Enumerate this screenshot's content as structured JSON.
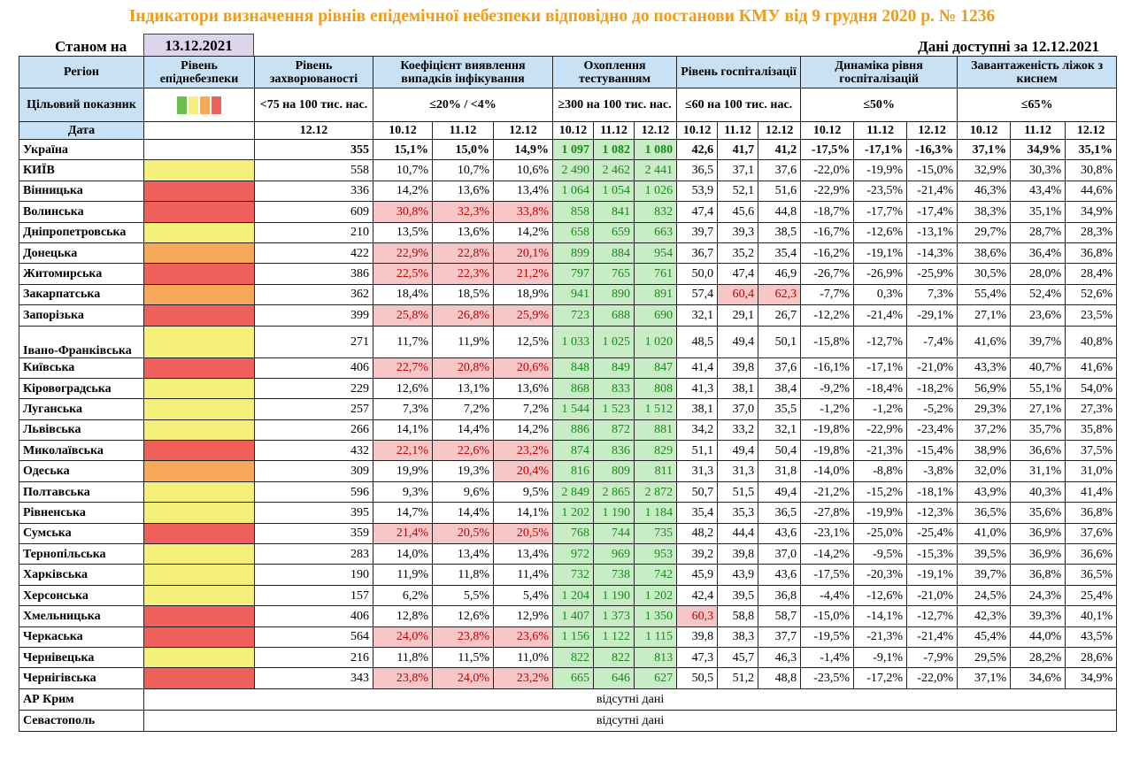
{
  "title": "Індикатори визначення рівнів епідемічної небезпеки відповідно до постанови КМУ від 9 грудня 2020 р. № 1236",
  "as_of_label": "Станом на",
  "as_of_date": "13.12.2021",
  "data_available": "Дані доступні за  12.12.2021",
  "headers": {
    "region": "Регіон",
    "danger_level": "Рівень епіднебезпеки",
    "incidence": "Рівень захворюваності",
    "detection": "Коефіцієнт виявлення випадків інфікування",
    "testing": "Охоплення тестуванням",
    "hosp": "Рівень госпіталізації",
    "hosp_dyn": "Динаміка рівня госпіталізацій",
    "oxygen": "Завантаженість ліжок з киснем"
  },
  "targets": {
    "label": "Цільовий показник",
    "incidence": "<75 на 100 тис. нас.",
    "detection": "≤20% / <4%",
    "testing": "≥300 на 100 тис. нас.",
    "hosp": "≤60 на 100 тис. нас.",
    "hosp_dyn": "≤50%",
    "oxygen": "≤65%",
    "swatch_colors": [
      "#6cbf4a",
      "#f4f07a",
      "#f6a858",
      "#f0605a"
    ]
  },
  "dates": {
    "label": "Дата",
    "incidence": "12.12",
    "triple": [
      "10.12",
      "11.12",
      "12.12"
    ]
  },
  "level_colors": {
    "red": "#f0605a",
    "yellow": "#f4f07a",
    "orange": "#f6a858"
  },
  "rows": [
    {
      "region": "Україна",
      "level": "",
      "inc": "355",
      "det": [
        "15,1%",
        "15,0%",
        "14,9%"
      ],
      "test": [
        "1 097",
        "1 082",
        "1 080"
      ],
      "hosp": [
        "42,6",
        "41,7",
        "41,2"
      ],
      "dyn": [
        "-17,5%",
        "-17,1%",
        "-16,3%"
      ],
      "oxy": [
        "37,1%",
        "34,9%",
        "35,1%"
      ],
      "bold": true,
      "pink_det": [
        false,
        false,
        false
      ],
      "pink_hosp": [
        false,
        false,
        false
      ]
    },
    {
      "region": "КИЇВ",
      "level": "yellow",
      "inc": "558",
      "det": [
        "10,7%",
        "10,7%",
        "10,6%"
      ],
      "test": [
        "2 490",
        "2 462",
        "2 441"
      ],
      "hosp": [
        "36,5",
        "37,1",
        "37,6"
      ],
      "dyn": [
        "-22,0%",
        "-19,9%",
        "-15,0%"
      ],
      "oxy": [
        "32,9%",
        "30,3%",
        "30,8%"
      ],
      "pink_det": [
        false,
        false,
        false
      ],
      "pink_hosp": [
        false,
        false,
        false
      ]
    },
    {
      "region": "Вінницька",
      "level": "red",
      "inc": "336",
      "det": [
        "14,2%",
        "13,6%",
        "13,4%"
      ],
      "test": [
        "1 064",
        "1 054",
        "1 026"
      ],
      "hosp": [
        "53,9",
        "52,1",
        "51,6"
      ],
      "dyn": [
        "-22,9%",
        "-23,5%",
        "-21,4%"
      ],
      "oxy": [
        "46,3%",
        "43,4%",
        "44,6%"
      ],
      "pink_det": [
        false,
        false,
        false
      ],
      "pink_hosp": [
        false,
        false,
        false
      ]
    },
    {
      "region": "Волинська",
      "level": "red",
      "inc": "609",
      "det": [
        "30,8%",
        "32,3%",
        "33,8%"
      ],
      "test": [
        "858",
        "841",
        "832"
      ],
      "hosp": [
        "47,4",
        "45,6",
        "44,8"
      ],
      "dyn": [
        "-18,7%",
        "-17,7%",
        "-17,4%"
      ],
      "oxy": [
        "38,3%",
        "35,1%",
        "34,9%"
      ],
      "pink_det": [
        true,
        true,
        true
      ],
      "pink_hosp": [
        false,
        false,
        false
      ]
    },
    {
      "region": "Дніпропетровська",
      "level": "yellow",
      "inc": "210",
      "det": [
        "13,5%",
        "13,6%",
        "14,2%"
      ],
      "test": [
        "658",
        "659",
        "663"
      ],
      "hosp": [
        "39,7",
        "39,3",
        "38,5"
      ],
      "dyn": [
        "-16,7%",
        "-12,6%",
        "-13,1%"
      ],
      "oxy": [
        "29,7%",
        "28,7%",
        "28,3%"
      ],
      "pink_det": [
        false,
        false,
        false
      ],
      "pink_hosp": [
        false,
        false,
        false
      ]
    },
    {
      "region": "Донецька",
      "level": "orange",
      "inc": "422",
      "det": [
        "22,9%",
        "22,8%",
        "20,1%"
      ],
      "test": [
        "899",
        "884",
        "954"
      ],
      "hosp": [
        "36,7",
        "35,2",
        "35,4"
      ],
      "dyn": [
        "-16,2%",
        "-19,1%",
        "-14,3%"
      ],
      "oxy": [
        "38,6%",
        "36,4%",
        "36,8%"
      ],
      "pink_det": [
        true,
        true,
        true
      ],
      "pink_hosp": [
        false,
        false,
        false
      ]
    },
    {
      "region": "Житомирська",
      "level": "red",
      "inc": "386",
      "det": [
        "22,5%",
        "22,3%",
        "21,2%"
      ],
      "test": [
        "797",
        "765",
        "761"
      ],
      "hosp": [
        "50,0",
        "47,4",
        "46,9"
      ],
      "dyn": [
        "-26,7%",
        "-26,9%",
        "-25,9%"
      ],
      "oxy": [
        "30,5%",
        "28,0%",
        "28,4%"
      ],
      "pink_det": [
        true,
        true,
        true
      ],
      "pink_hosp": [
        false,
        false,
        false
      ]
    },
    {
      "region": "Закарпатська",
      "level": "orange",
      "inc": "362",
      "det": [
        "18,4%",
        "18,5%",
        "18,9%"
      ],
      "test": [
        "941",
        "890",
        "891"
      ],
      "hosp": [
        "57,4",
        "60,4",
        "62,3"
      ],
      "dyn": [
        "-7,7%",
        "0,3%",
        "7,3%"
      ],
      "oxy": [
        "55,4%",
        "52,4%",
        "52,6%"
      ],
      "pink_det": [
        false,
        false,
        false
      ],
      "pink_hosp": [
        false,
        true,
        true
      ]
    },
    {
      "region": "Запорізька",
      "level": "red",
      "inc": "399",
      "det": [
        "25,8%",
        "26,8%",
        "25,9%"
      ],
      "test": [
        "723",
        "688",
        "690"
      ],
      "hosp": [
        "32,1",
        "29,1",
        "26,7"
      ],
      "dyn": [
        "-12,2%",
        "-21,4%",
        "-29,1%"
      ],
      "oxy": [
        "27,1%",
        "23,6%",
        "23,5%"
      ],
      "pink_det": [
        true,
        true,
        true
      ],
      "pink_hosp": [
        false,
        false,
        false
      ]
    },
    {
      "region": "Івано-Франківська",
      "level": "yellow",
      "inc": "271",
      "det": [
        "11,7%",
        "11,9%",
        "12,5%"
      ],
      "test": [
        "1 033",
        "1 025",
        "1 020"
      ],
      "hosp": [
        "48,5",
        "49,4",
        "50,1"
      ],
      "dyn": [
        "-15,8%",
        "-12,7%",
        "-7,4%"
      ],
      "oxy": [
        "41,6%",
        "39,7%",
        "40,8%"
      ],
      "pink_det": [
        false,
        false,
        false
      ],
      "pink_hosp": [
        false,
        false,
        false
      ],
      "tall": true
    },
    {
      "region": "Київська",
      "level": "red",
      "inc": "406",
      "det": [
        "22,7%",
        "20,8%",
        "20,6%"
      ],
      "test": [
        "848",
        "849",
        "847"
      ],
      "hosp": [
        "41,4",
        "39,8",
        "37,6"
      ],
      "dyn": [
        "-16,1%",
        "-17,1%",
        "-21,0%"
      ],
      "oxy": [
        "43,3%",
        "40,7%",
        "41,6%"
      ],
      "pink_det": [
        true,
        true,
        true
      ],
      "pink_hosp": [
        false,
        false,
        false
      ]
    },
    {
      "region": "Кіровоградська",
      "level": "yellow",
      "inc": "229",
      "det": [
        "12,6%",
        "13,1%",
        "13,6%"
      ],
      "test": [
        "868",
        "833",
        "808"
      ],
      "hosp": [
        "41,3",
        "38,1",
        "38,4"
      ],
      "dyn": [
        "-9,2%",
        "-18,4%",
        "-18,2%"
      ],
      "oxy": [
        "56,9%",
        "55,1%",
        "54,0%"
      ],
      "pink_det": [
        false,
        false,
        false
      ],
      "pink_hosp": [
        false,
        false,
        false
      ]
    },
    {
      "region": "Луганська",
      "level": "yellow",
      "inc": "257",
      "det": [
        "7,3%",
        "7,2%",
        "7,2%"
      ],
      "test": [
        "1 544",
        "1 523",
        "1 512"
      ],
      "hosp": [
        "38,1",
        "37,0",
        "35,5"
      ],
      "dyn": [
        "-1,2%",
        "-1,2%",
        "-5,2%"
      ],
      "oxy": [
        "29,3%",
        "27,1%",
        "27,3%"
      ],
      "pink_det": [
        false,
        false,
        false
      ],
      "pink_hosp": [
        false,
        false,
        false
      ]
    },
    {
      "region": "Львівська",
      "level": "yellow",
      "inc": "266",
      "det": [
        "14,1%",
        "14,4%",
        "14,2%"
      ],
      "test": [
        "886",
        "872",
        "881"
      ],
      "hosp": [
        "34,2",
        "33,2",
        "32,1"
      ],
      "dyn": [
        "-19,8%",
        "-22,9%",
        "-23,4%"
      ],
      "oxy": [
        "37,2%",
        "35,7%",
        "35,8%"
      ],
      "pink_det": [
        false,
        false,
        false
      ],
      "pink_hosp": [
        false,
        false,
        false
      ]
    },
    {
      "region": "Миколаївська",
      "level": "red",
      "inc": "432",
      "det": [
        "22,1%",
        "22,6%",
        "23,2%"
      ],
      "test": [
        "874",
        "836",
        "829"
      ],
      "hosp": [
        "51,1",
        "49,4",
        "50,4"
      ],
      "dyn": [
        "-19,8%",
        "-21,3%",
        "-15,4%"
      ],
      "oxy": [
        "38,9%",
        "36,6%",
        "37,5%"
      ],
      "pink_det": [
        true,
        true,
        true
      ],
      "pink_hosp": [
        false,
        false,
        false
      ]
    },
    {
      "region": "Одеська",
      "level": "orange",
      "inc": "309",
      "det": [
        "19,9%",
        "19,3%",
        "20,4%"
      ],
      "test": [
        "816",
        "809",
        "811"
      ],
      "hosp": [
        "31,3",
        "31,3",
        "31,8"
      ],
      "dyn": [
        "-14,0%",
        "-8,8%",
        "-3,8%"
      ],
      "oxy": [
        "32,0%",
        "31,1%",
        "31,0%"
      ],
      "pink_det": [
        false,
        false,
        true
      ],
      "pink_hosp": [
        false,
        false,
        false
      ]
    },
    {
      "region": "Полтавська",
      "level": "yellow",
      "inc": "596",
      "det": [
        "9,3%",
        "9,6%",
        "9,5%"
      ],
      "test": [
        "2 849",
        "2 865",
        "2 872"
      ],
      "hosp": [
        "50,7",
        "51,5",
        "49,4"
      ],
      "dyn": [
        "-21,2%",
        "-15,2%",
        "-18,1%"
      ],
      "oxy": [
        "43,9%",
        "40,3%",
        "41,4%"
      ],
      "pink_det": [
        false,
        false,
        false
      ],
      "pink_hosp": [
        false,
        false,
        false
      ]
    },
    {
      "region": "Рівненська",
      "level": "yellow",
      "inc": "395",
      "det": [
        "14,7%",
        "14,4%",
        "14,1%"
      ],
      "test": [
        "1 202",
        "1 190",
        "1 184"
      ],
      "hosp": [
        "35,4",
        "35,3",
        "36,5"
      ],
      "dyn": [
        "-27,8%",
        "-19,9%",
        "-12,3%"
      ],
      "oxy": [
        "36,5%",
        "35,6%",
        "36,8%"
      ],
      "pink_det": [
        false,
        false,
        false
      ],
      "pink_hosp": [
        false,
        false,
        false
      ]
    },
    {
      "region": "Сумська",
      "level": "red",
      "inc": "359",
      "det": [
        "21,4%",
        "20,5%",
        "20,5%"
      ],
      "test": [
        "768",
        "744",
        "735"
      ],
      "hosp": [
        "48,2",
        "44,4",
        "43,6"
      ],
      "dyn": [
        "-23,1%",
        "-25,0%",
        "-25,4%"
      ],
      "oxy": [
        "41,0%",
        "36,9%",
        "37,6%"
      ],
      "pink_det": [
        true,
        true,
        true
      ],
      "pink_hosp": [
        false,
        false,
        false
      ]
    },
    {
      "region": "Тернопільська",
      "level": "yellow",
      "inc": "283",
      "det": [
        "14,0%",
        "13,4%",
        "13,4%"
      ],
      "test": [
        "972",
        "969",
        "953"
      ],
      "hosp": [
        "39,2",
        "39,8",
        "37,0"
      ],
      "dyn": [
        "-14,2%",
        "-9,5%",
        "-15,3%"
      ],
      "oxy": [
        "39,5%",
        "36,9%",
        "36,6%"
      ],
      "pink_det": [
        false,
        false,
        false
      ],
      "pink_hosp": [
        false,
        false,
        false
      ]
    },
    {
      "region": "Харківська",
      "level": "yellow",
      "inc": "190",
      "det": [
        "11,9%",
        "11,8%",
        "11,4%"
      ],
      "test": [
        "732",
        "738",
        "742"
      ],
      "hosp": [
        "45,9",
        "43,9",
        "43,6"
      ],
      "dyn": [
        "-17,5%",
        "-20,3%",
        "-19,1%"
      ],
      "oxy": [
        "39,7%",
        "36,8%",
        "36,5%"
      ],
      "pink_det": [
        false,
        false,
        false
      ],
      "pink_hosp": [
        false,
        false,
        false
      ]
    },
    {
      "region": "Херсонська",
      "level": "yellow",
      "inc": "157",
      "det": [
        "6,2%",
        "5,5%",
        "5,4%"
      ],
      "test": [
        "1 204",
        "1 190",
        "1 202"
      ],
      "hosp": [
        "42,4",
        "39,5",
        "36,8"
      ],
      "dyn": [
        "-4,4%",
        "-12,6%",
        "-21,0%"
      ],
      "oxy": [
        "24,5%",
        "24,3%",
        "25,4%"
      ],
      "pink_det": [
        false,
        false,
        false
      ],
      "pink_hosp": [
        false,
        false,
        false
      ]
    },
    {
      "region": "Хмельницька",
      "level": "red",
      "inc": "406",
      "det": [
        "12,8%",
        "12,6%",
        "12,9%"
      ],
      "test": [
        "1 407",
        "1 373",
        "1 350"
      ],
      "hosp": [
        "60,3",
        "58,8",
        "58,7"
      ],
      "dyn": [
        "-15,0%",
        "-14,1%",
        "-12,7%"
      ],
      "oxy": [
        "42,3%",
        "39,3%",
        "40,1%"
      ],
      "pink_det": [
        false,
        false,
        false
      ],
      "pink_hosp": [
        true,
        false,
        false
      ]
    },
    {
      "region": "Черкаська",
      "level": "red",
      "inc": "564",
      "det": [
        "24,0%",
        "23,8%",
        "23,6%"
      ],
      "test": [
        "1 156",
        "1 122",
        "1 115"
      ],
      "hosp": [
        "39,8",
        "38,3",
        "37,7"
      ],
      "dyn": [
        "-19,5%",
        "-21,3%",
        "-21,4%"
      ],
      "oxy": [
        "45,4%",
        "44,0%",
        "43,5%"
      ],
      "pink_det": [
        true,
        true,
        true
      ],
      "pink_hosp": [
        false,
        false,
        false
      ]
    },
    {
      "region": "Чернівецька",
      "level": "yellow",
      "inc": "216",
      "det": [
        "11,8%",
        "11,5%",
        "11,0%"
      ],
      "test": [
        "822",
        "822",
        "813"
      ],
      "hosp": [
        "47,3",
        "45,7",
        "46,3"
      ],
      "dyn": [
        "-1,4%",
        "-9,1%",
        "-7,9%"
      ],
      "oxy": [
        "29,5%",
        "28,2%",
        "28,6%"
      ],
      "pink_det": [
        false,
        false,
        false
      ],
      "pink_hosp": [
        false,
        false,
        false
      ]
    },
    {
      "region": "Чернігівська",
      "level": "red",
      "inc": "343",
      "det": [
        "23,8%",
        "24,0%",
        "23,2%"
      ],
      "test": [
        "665",
        "646",
        "627"
      ],
      "hosp": [
        "50,5",
        "51,2",
        "48,8"
      ],
      "dyn": [
        "-23,5%",
        "-17,2%",
        "-22,0%"
      ],
      "oxy": [
        "37,1%",
        "34,6%",
        "34,9%"
      ],
      "pink_det": [
        true,
        true,
        true
      ],
      "pink_hosp": [
        false,
        false,
        false
      ]
    }
  ],
  "missing_rows": [
    {
      "region": "АР Крим",
      "note": "відсутні дані"
    },
    {
      "region": "Севастополь",
      "note": "відсутні дані"
    }
  ]
}
